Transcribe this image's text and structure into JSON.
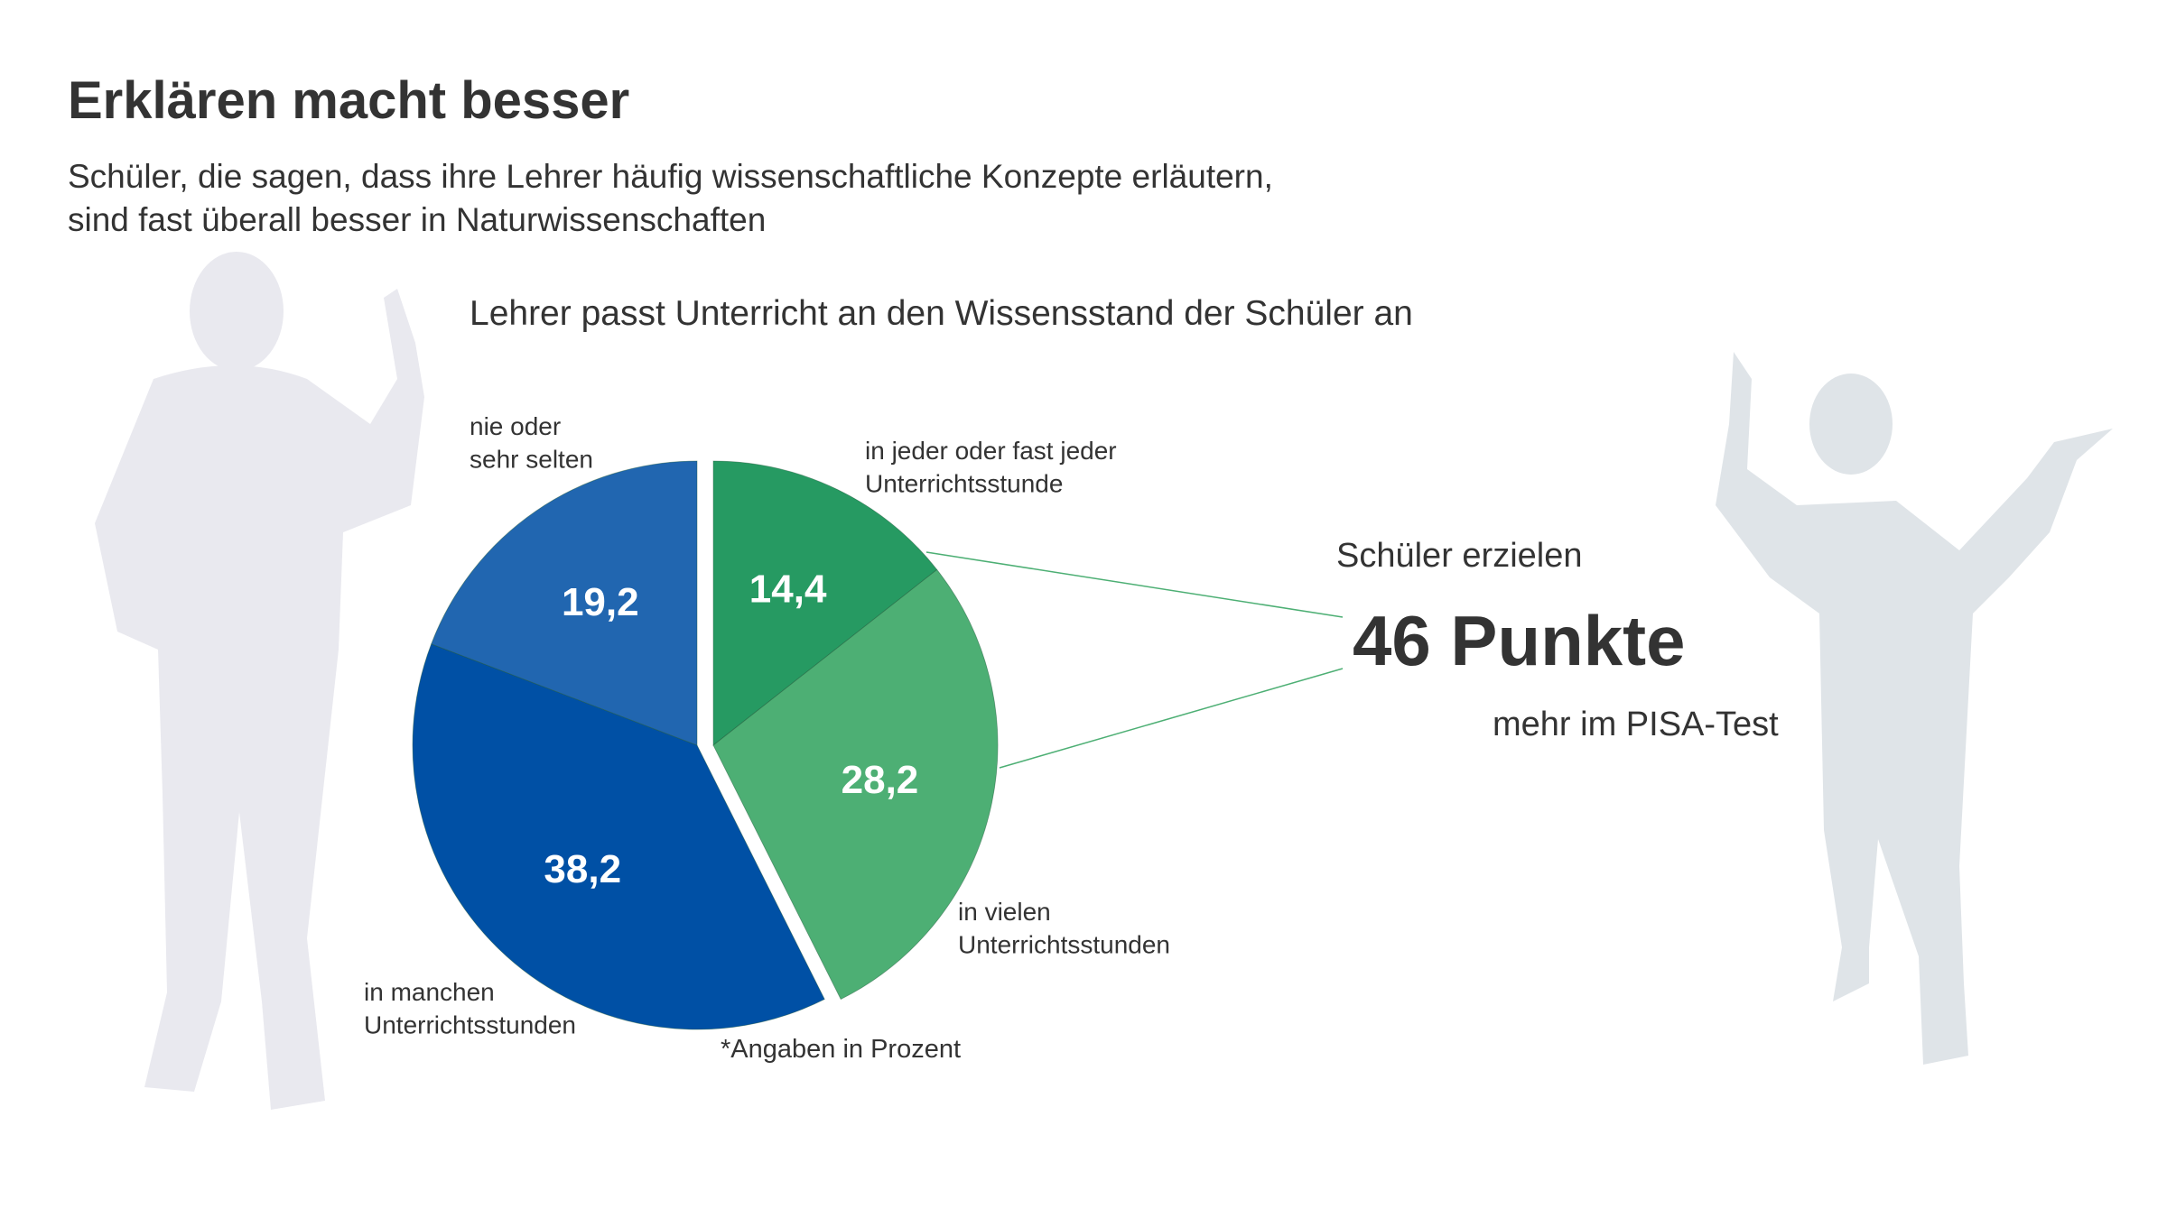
{
  "chart_data": {
    "type": "pie",
    "title": "Erklären macht besser",
    "subtitle": "Schüler, die sagen, dass ihre Lehrer häufig wissenschaftliche Konzepte erläutern,\nsind fast überall besser in Naturwissenschaften",
    "chart_title": "Lehrer passt Unterricht an den Wissensstand der Schüler an",
    "categories": [
      "in jeder oder fast jeder\nUnterrichtsstunde",
      "in vielen\nUnterrichtsstunden",
      "in manchen\nUnterrichtsstunden",
      "nie oder\nsehr selten"
    ],
    "values": [
      14.4,
      28.2,
      38.2,
      19.2
    ],
    "value_labels": [
      "14,4",
      "28,2",
      "38,2",
      "19,2"
    ],
    "colors": [
      "#269a62",
      "#4daf74",
      "#0050a5",
      "#2166b0"
    ],
    "exploded": [
      true,
      true,
      false,
      false
    ],
    "note": "*Angaben in Prozent",
    "annotation": {
      "intro": "Schüler erzielen",
      "highlight": "46 Punkte",
      "outro": "mehr im PISA-Test"
    }
  }
}
